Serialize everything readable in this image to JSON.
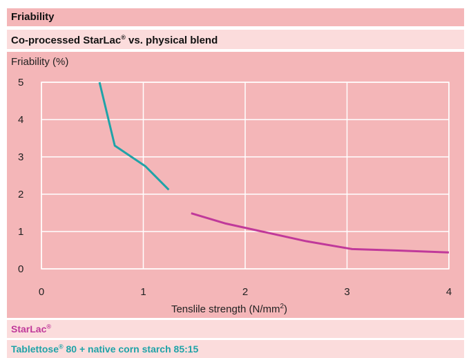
{
  "header": {
    "title": "Friability",
    "subtitle": "Co-processed StarLac",
    "subtitle_sup": "®",
    "subtitle_rest": " vs. physical blend"
  },
  "legend": {
    "item1_name": "StarLac",
    "item1_sup": "®",
    "item1_color": "#c0399a",
    "item2_name": "Tablettose",
    "item2_sup": "®",
    "item2_rest": " 80 + native corn starch 85:15",
    "item2_color": "#1fa3a8"
  },
  "colors": {
    "panel_bg": "#f4b6b8",
    "band_bg": "#fbdcdc",
    "grid": "#ffffff"
  },
  "chart_data": {
    "type": "line",
    "ylabel": "Friability (%)",
    "xlabel": "Tenslile strength (N/mm",
    "xlabel_sup": "2",
    "xlabel_end": ")",
    "xlim": [
      0,
      4
    ],
    "ylim": [
      0,
      5
    ],
    "x_ticks": [
      0,
      1,
      2,
      3,
      4
    ],
    "y_ticks": [
      0,
      1,
      2,
      3,
      4,
      5
    ],
    "grid": true,
    "series": [
      {
        "name": "Tablettose® 80 + native corn starch 85:15",
        "color": "#1fa3a8",
        "points": [
          [
            0.57,
            5.0
          ],
          [
            0.72,
            3.3
          ],
          [
            1.02,
            2.75
          ],
          [
            1.25,
            2.12
          ]
        ]
      },
      {
        "name": "StarLac®",
        "color": "#c0399a",
        "points": [
          [
            1.47,
            1.49
          ],
          [
            1.8,
            1.22
          ],
          [
            2.2,
            0.98
          ],
          [
            2.6,
            0.74
          ],
          [
            3.05,
            0.53
          ],
          [
            3.5,
            0.49
          ],
          [
            4.0,
            0.44
          ]
        ]
      }
    ]
  }
}
